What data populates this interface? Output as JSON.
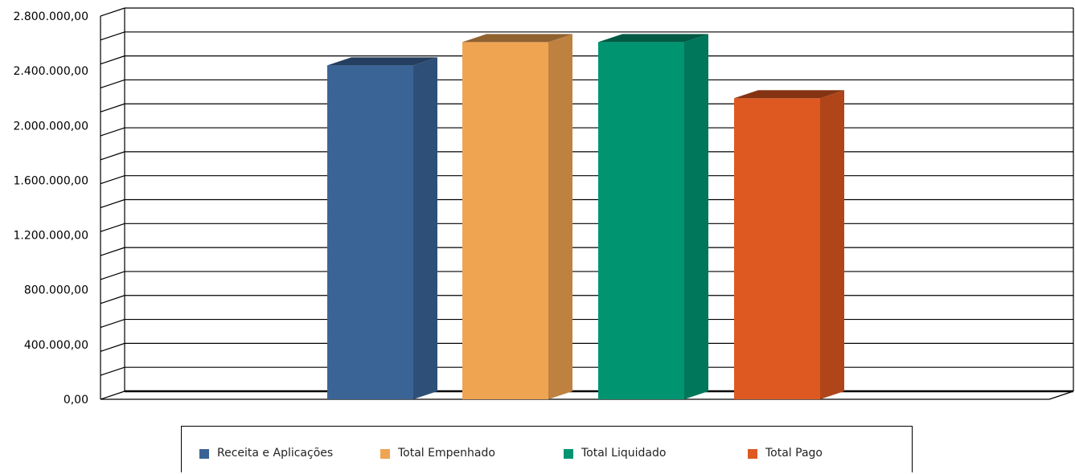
{
  "chart_data": {
    "type": "bar",
    "categories": [
      "Receita e Aplicações",
      "Total Empenhado",
      "Total Liquidado",
      "Total Pago"
    ],
    "values": [
      2440000,
      2610000,
      2610000,
      2200000
    ],
    "colors": [
      "#3b6496",
      "#efa452",
      "#009471",
      "#dd5921"
    ],
    "side_colors": [
      "#2e5078",
      "#bf8140",
      "#00775a",
      "#b0451a"
    ],
    "top_colors": [
      "#243f60",
      "#8f6230",
      "#005a44",
      "#843312"
    ],
    "ylim": [
      0,
      2800000
    ],
    "ytick_labels": [
      "0,00",
      "400.000,00",
      "800.000,00",
      "1.200.000,00",
      "1.600.000,00",
      "2.000.000,00",
      "2.400.000,00",
      "2.800.000,00"
    ],
    "grid": true,
    "legend_position": "bottom"
  }
}
